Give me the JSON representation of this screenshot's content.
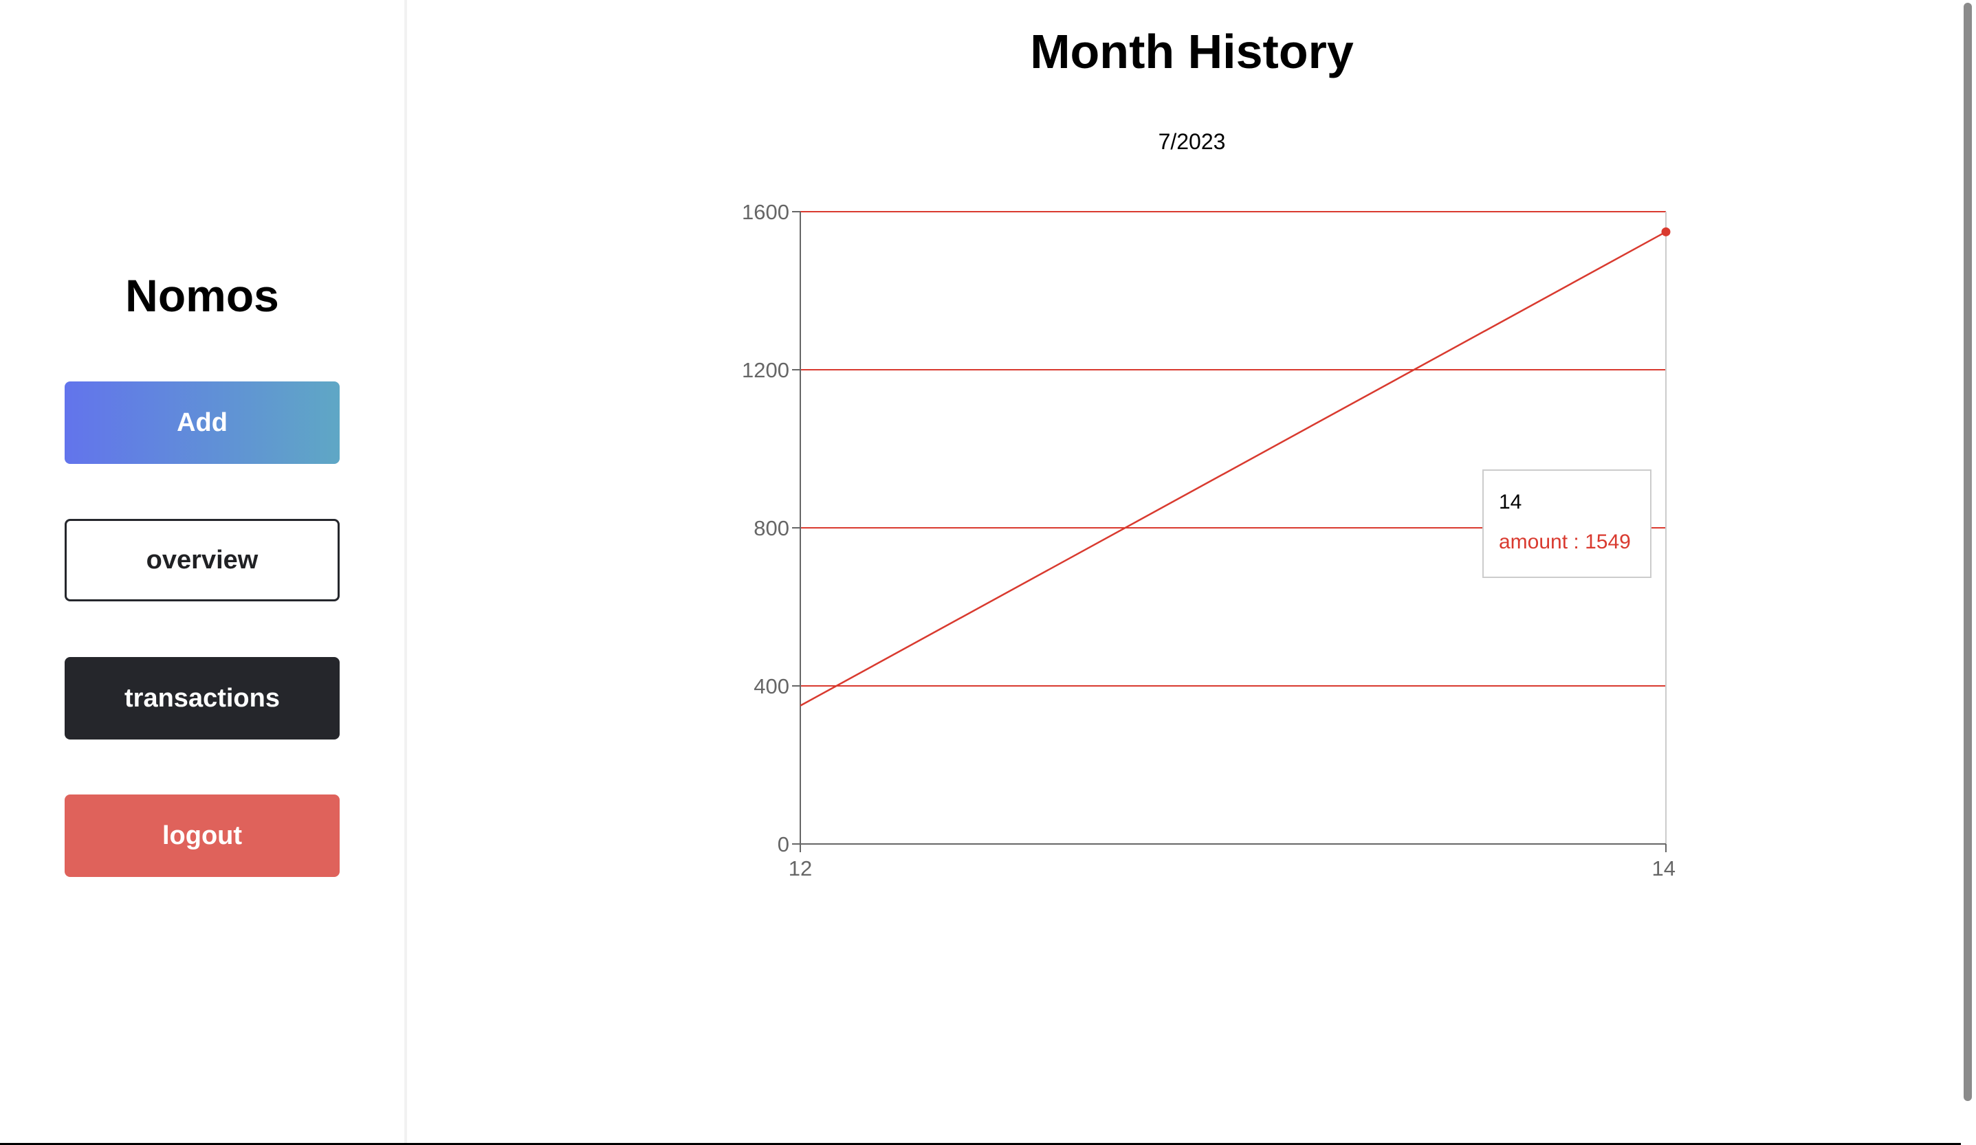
{
  "sidebar": {
    "brand": "Nomos",
    "buttons": {
      "add": "Add",
      "overview": "overview",
      "transactions": "transactions",
      "logout": "logout"
    }
  },
  "main": {
    "title": "Month History",
    "month": "7/2023"
  },
  "tooltip": {
    "label": "14",
    "series_name": "amount",
    "value": "1549",
    "text": "amount : 1549"
  },
  "colors": {
    "line": "#d93a2f",
    "grid": "#d93a2f",
    "axis": "#666666"
  },
  "chart_data": {
    "type": "line",
    "title": "7/2023",
    "x": [
      12,
      14
    ],
    "series": [
      {
        "name": "amount",
        "values": [
          350,
          1549
        ]
      }
    ],
    "xticks": [
      "12",
      "14"
    ],
    "yticks": [
      0,
      400,
      800,
      1200,
      1600
    ],
    "ylim": [
      0,
      1600
    ],
    "xlim": [
      12,
      14
    ],
    "grid": true,
    "active_point": {
      "x": 14,
      "y": 1549
    }
  }
}
